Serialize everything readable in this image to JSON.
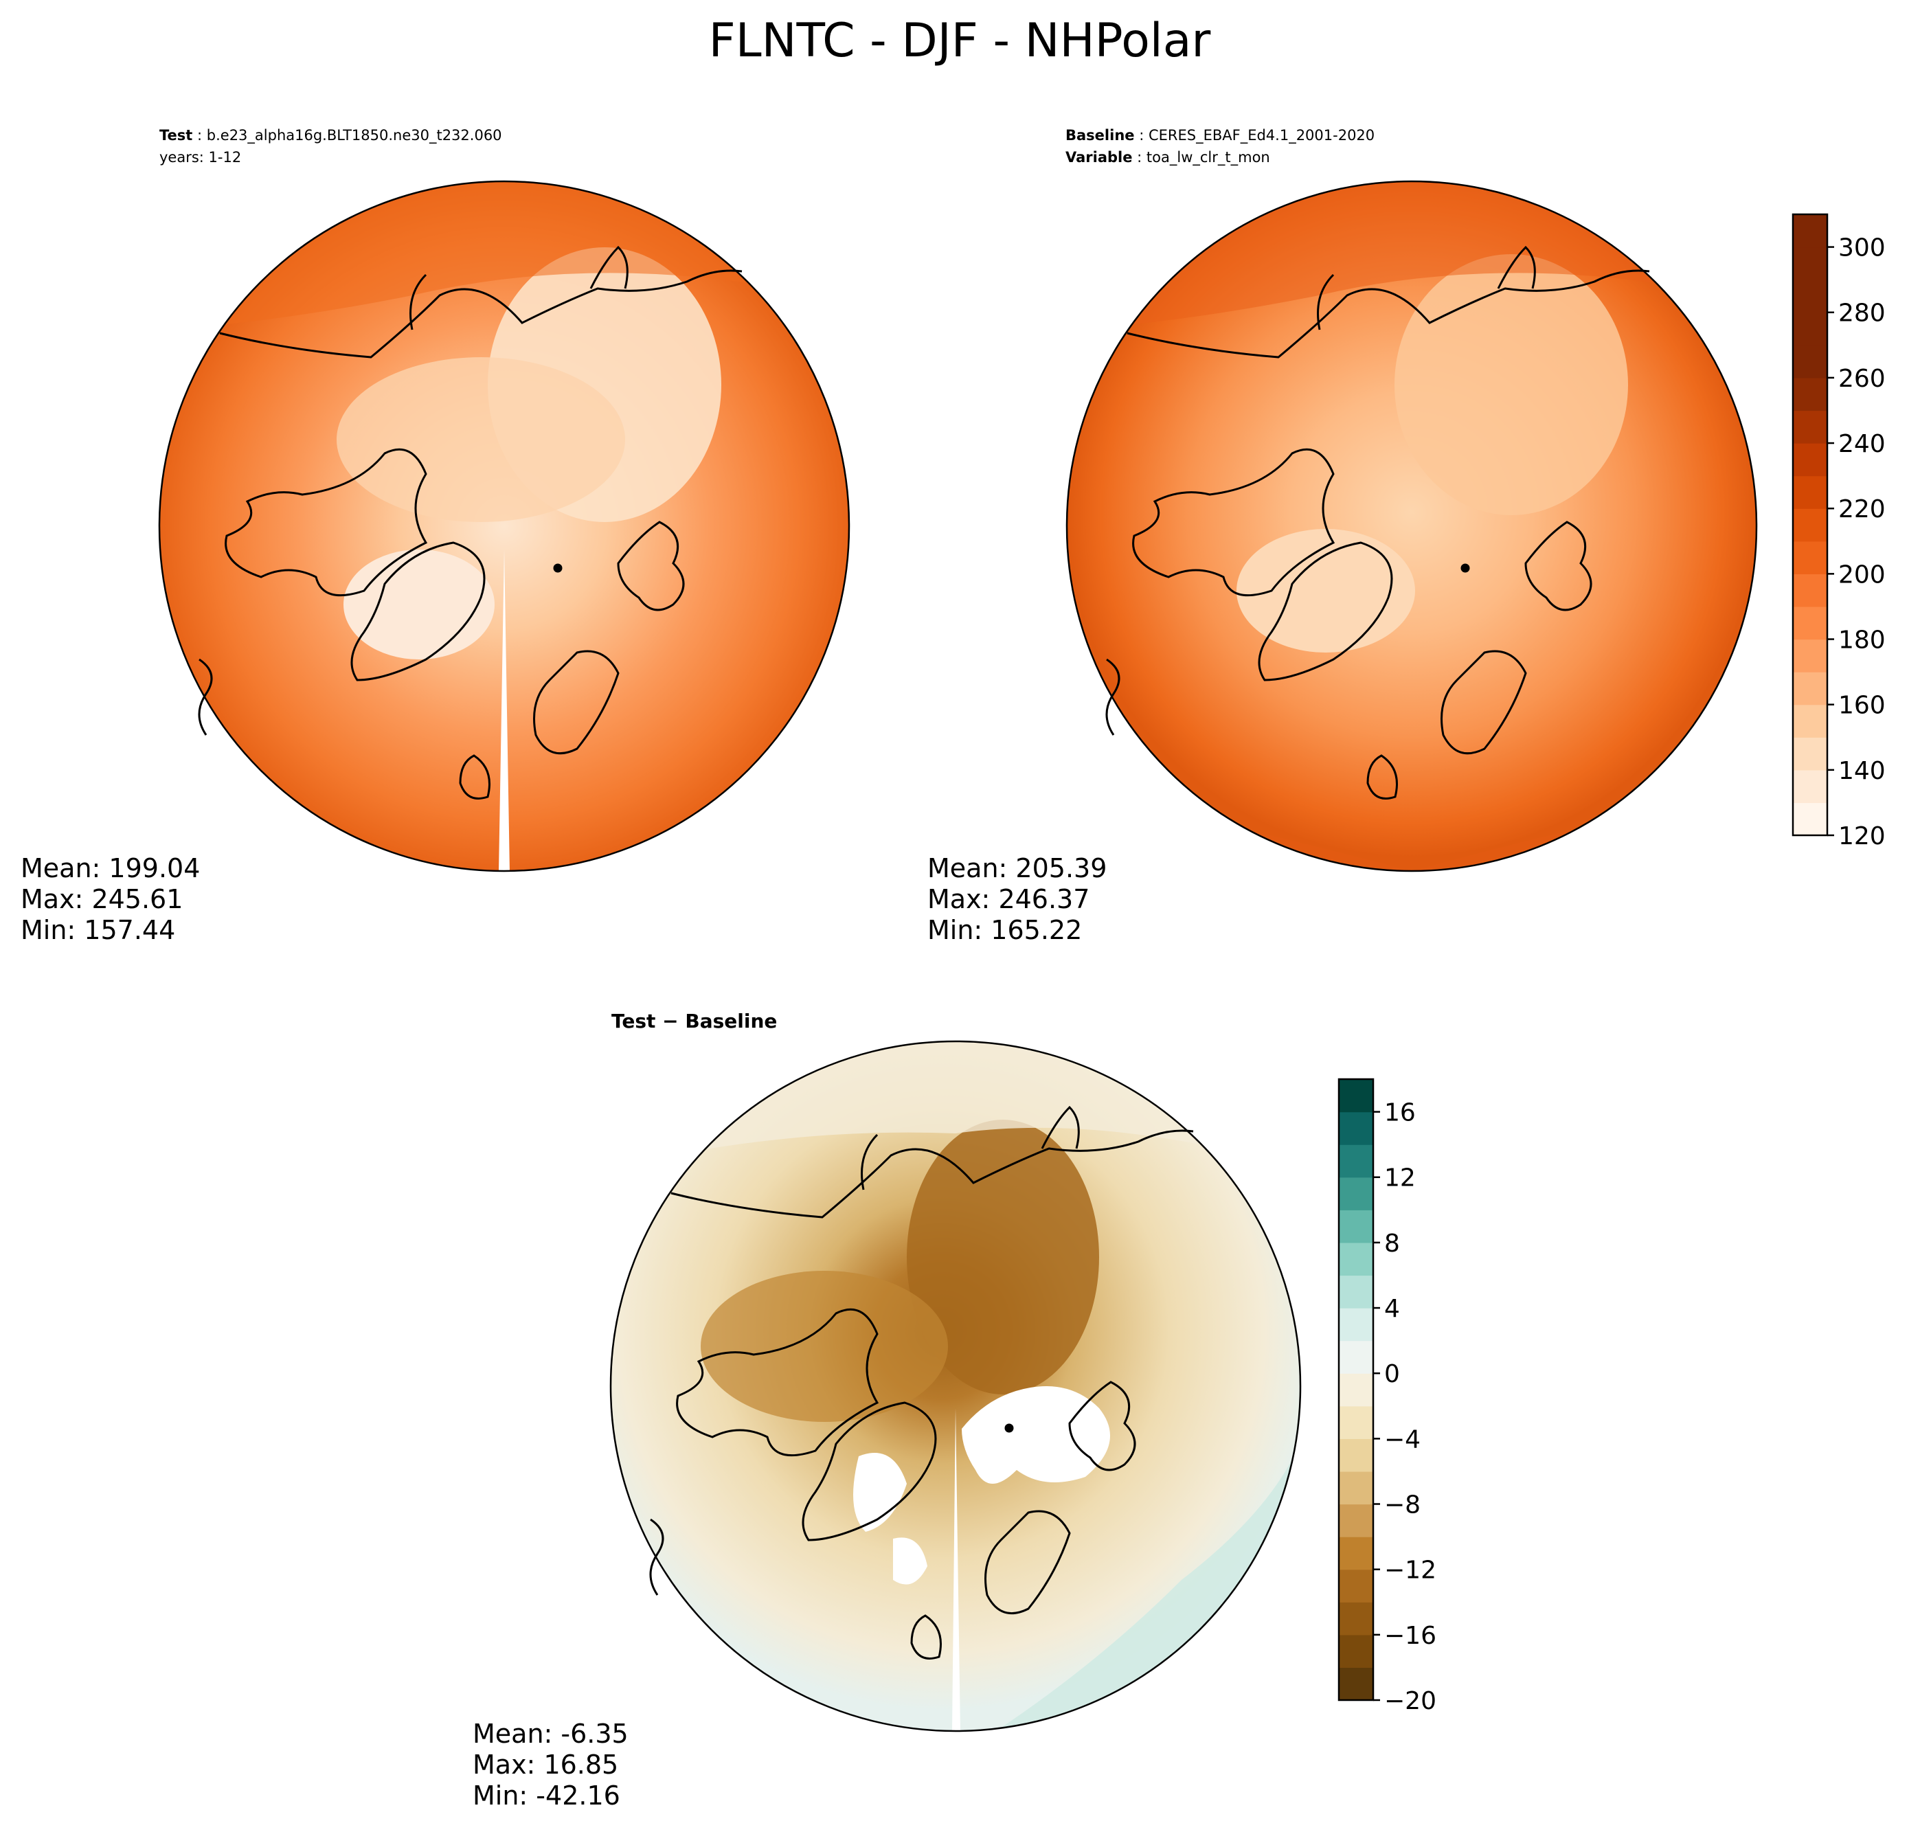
{
  "title": "FLNTC - DJF - NHPolar",
  "panels": {
    "test": {
      "header_line1_key": "Test",
      "header_line1_value": "b.e23_alpha16g.BLT1850.ne30_t232.060",
      "header_line2": "years: 1-12",
      "stats": {
        "mean": "Mean: 199.04",
        "max": "Max: 245.61",
        "min": "Min: 157.44"
      }
    },
    "baseline": {
      "header_line1_key": "Baseline",
      "header_line1_value": "CERES_EBAF_Ed4.1_2001-2020",
      "header_line2_key": "Variable",
      "header_line2_value": "toa_lw_clr_t_mon",
      "stats": {
        "mean": "Mean: 205.39",
        "max": "Max: 246.37",
        "min": "Min: 165.22"
      }
    },
    "diff": {
      "header": "Test − Baseline",
      "stats": {
        "mean": "Mean: -6.35",
        "max": "Max: 16.85",
        "min": "Min: -42.16"
      }
    }
  },
  "chart_data": [
    {
      "type": "heatmap",
      "panel": "Test",
      "projection": "north-polar-stereographic",
      "colormap": "Oranges",
      "mean": 199.04,
      "max": 245.61,
      "min": 157.44,
      "colorbar": {
        "vmin": 120,
        "vmax": 310,
        "levels": [
          120,
          130,
          140,
          150,
          160,
          170,
          180,
          190,
          200,
          210,
          220,
          230,
          240,
          250,
          260,
          270,
          280,
          290,
          300,
          310
        ]
      }
    },
    {
      "type": "heatmap",
      "panel": "Baseline",
      "projection": "north-polar-stereographic",
      "colormap": "Oranges",
      "mean": 205.39,
      "max": 246.37,
      "min": 165.22,
      "colorbar": {
        "vmin": 120,
        "vmax": 310,
        "ticks": [
          "120",
          "140",
          "160",
          "180",
          "200",
          "220",
          "240",
          "260",
          "280",
          "300"
        ],
        "colors": [
          "#fff5eb",
          "#fee9d5",
          "#fddcbb",
          "#fdcb9d",
          "#fdb57f",
          "#fd9f62",
          "#fc8a46",
          "#f77730",
          "#ee6419",
          "#e3560c",
          "#d34804",
          "#c13c02",
          "#a93402",
          "#8e2c03",
          "#7f2704",
          "#7f2704",
          "#7f2704",
          "#7f2704",
          "#7f2704"
        ]
      }
    },
    {
      "type": "heatmap",
      "panel": "Test − Baseline",
      "projection": "north-polar-stereographic",
      "colormap": "BrBG",
      "mean": -6.35,
      "max": 16.85,
      "min": -42.16,
      "colorbar": {
        "vmin": -20,
        "vmax": 18,
        "ticks": [
          "−20",
          "−16",
          "−12",
          "−8",
          "−4",
          "0",
          "4",
          "8",
          "12",
          "16"
        ],
        "colors": [
          "#5e3b0b",
          "#7a4a0c",
          "#935a13",
          "#aa6b1e",
          "#bf812d",
          "#cf9d55",
          "#dfbb7b",
          "#ebd39d",
          "#f3e4bd",
          "#f6efdc",
          "#eef4f1",
          "#d8eeea",
          "#b5e1d9",
          "#8ed1c4",
          "#64b9ab",
          "#3d9b8f",
          "#21807a",
          "#0d6562",
          "#01473f"
        ]
      }
    }
  ]
}
